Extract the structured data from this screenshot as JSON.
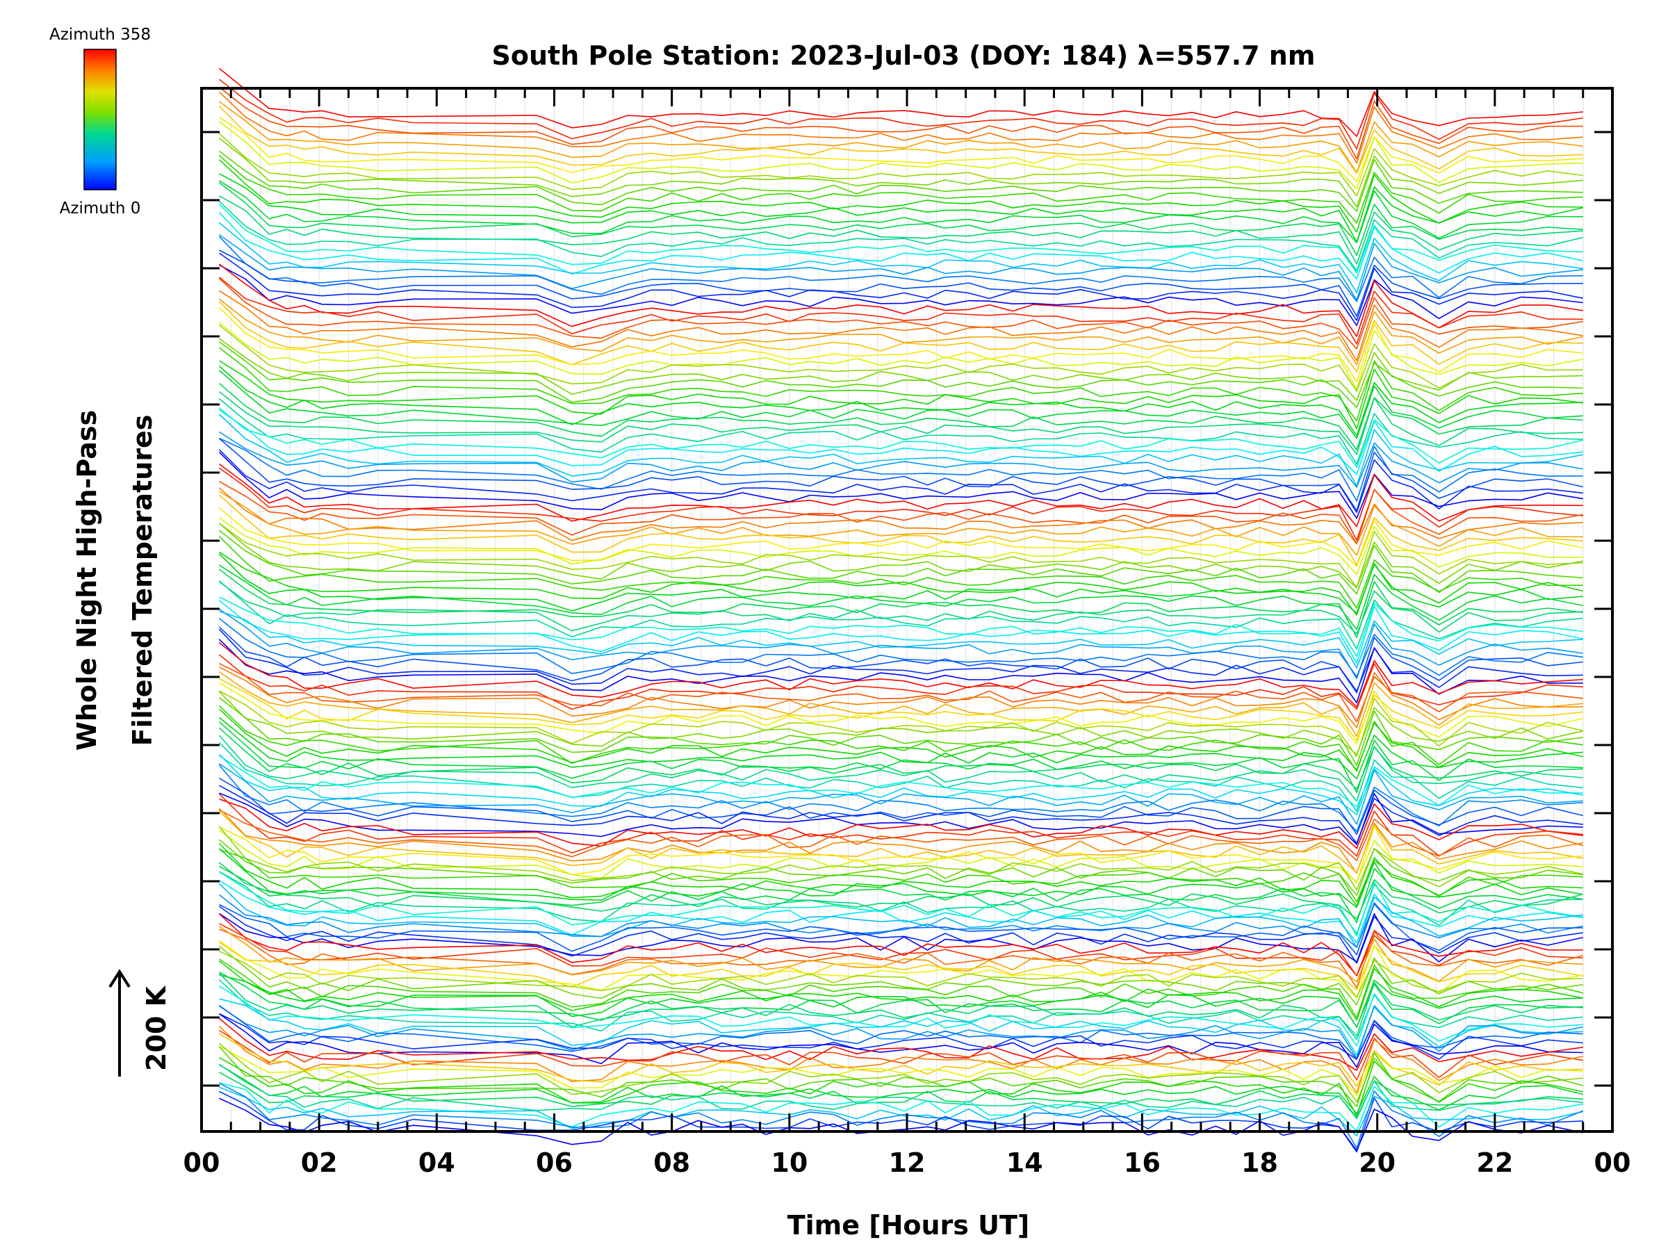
{
  "chart_data": {
    "type": "line",
    "title": "South Pole Station: 2023-Jul-03 (DOY: 184) λ=557.7 nm",
    "xlabel": "Time [Hours UT]",
    "ylabel_line1": "Whole Night High-Pass",
    "ylabel_line2": "Filtered Temperatures",
    "xlim": [
      0,
      24
    ],
    "x_ticks": [
      "00",
      "02",
      "04",
      "06",
      "08",
      "10",
      "12",
      "14",
      "16",
      "18",
      "20",
      "22",
      "00"
    ],
    "x_tick_values": [
      0,
      2,
      4,
      6,
      8,
      10,
      12,
      14,
      16,
      18,
      20,
      22,
      24
    ],
    "scale_label": "200 K",
    "colorbar": {
      "top_label": "Azimuth 358",
      "bottom_label": "Azimuth 0",
      "azimuth_min": 0,
      "azimuth_max": 358
    },
    "series_description": "Stacked high-pass filtered temperature traces, one per azimuth (0-358), offset vertically; colour encodes azimuth.",
    "times": [
      0.3,
      0.75,
      1.15,
      1.45,
      1.75,
      2.05,
      2.5,
      3.0,
      3.6,
      5.7,
      6.3,
      6.8,
      7.25,
      7.65,
      8.0,
      8.45,
      8.85,
      9.2,
      9.6,
      10.0,
      10.35,
      10.75,
      11.15,
      11.55,
      11.95,
      12.35,
      12.65,
      13.05,
      13.4,
      13.8,
      14.15,
      14.55,
      14.95,
      15.3,
      15.7,
      16.1,
      16.45,
      16.85,
      17.25,
      17.6,
      18.0,
      18.4,
      18.75,
      19.05,
      19.35,
      19.65,
      19.95,
      20.25,
      20.6,
      21.05,
      21.55,
      22.0,
      22.45,
      22.9,
      23.5
    ],
    "features": [
      {
        "time": 0.3,
        "amplitude": 3.5,
        "width": 0.5
      },
      {
        "time": 6.5,
        "amplitude": -1.6,
        "width": 0.5
      },
      {
        "time": 19.72,
        "amplitude": -3.2,
        "width": 0.18
      },
      {
        "time": 19.98,
        "amplitude": 3.4,
        "width": 0.18
      },
      {
        "time": 21.05,
        "amplitude": -1.5,
        "width": 0.3
      }
    ],
    "bands": [
      {
        "top_azimuth": 358,
        "bottom_azimuth": 0,
        "traces": 26,
        "band_height": 280,
        "curvature": 1.2,
        "scale": 1.0
      },
      {
        "top_azimuth": 358,
        "bottom_azimuth": 0,
        "traces": 26,
        "band_height": 280,
        "curvature": 1.1,
        "scale": 1.0
      },
      {
        "top_azimuth": 358,
        "bottom_azimuth": 0,
        "traces": 26,
        "band_height": 260,
        "curvature": 0.9,
        "scale": 0.95
      },
      {
        "top_azimuth": 358,
        "bottom_azimuth": 0,
        "traces": 24,
        "band_height": 210,
        "curvature": 0.6,
        "scale": 0.95
      },
      {
        "top_azimuth": 358,
        "bottom_azimuth": 0,
        "traces": 22,
        "band_height": 170,
        "curvature": 0.4,
        "scale": 0.95
      },
      {
        "top_azimuth": 358,
        "bottom_azimuth": 0,
        "traces": 20,
        "band_height": 150,
        "curvature": 0.25,
        "scale": 0.9
      },
      {
        "top_azimuth": 358,
        "bottom_azimuth": 0,
        "traces": 16,
        "band_height": 115,
        "curvature": 0.12,
        "scale": 0.9
      }
    ]
  }
}
